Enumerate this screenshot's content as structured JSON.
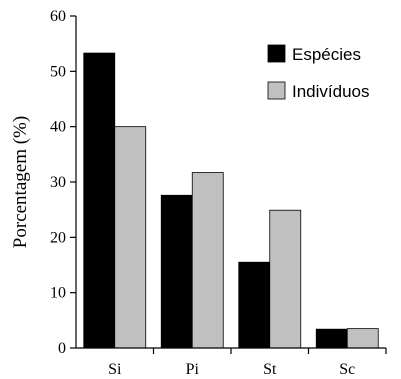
{
  "chart_data": {
    "type": "bar",
    "title": "",
    "xlabel": "",
    "ylabel": "Porcentagem (%)",
    "ylim": [
      0,
      60
    ],
    "yticks": [
      0,
      10,
      20,
      30,
      40,
      50,
      60
    ],
    "categories": [
      "Si",
      "Pi",
      "St",
      "Sc"
    ],
    "series": [
      {
        "name": "Espécies",
        "color": "#000000",
        "values": [
          53.3,
          27.6,
          15.5,
          3.4
        ]
      },
      {
        "name": "Indivíduos",
        "color": "#c0c0c0",
        "values": [
          40.0,
          31.7,
          24.9,
          3.5
        ]
      }
    ],
    "legend": "top-right",
    "grid": false
  }
}
